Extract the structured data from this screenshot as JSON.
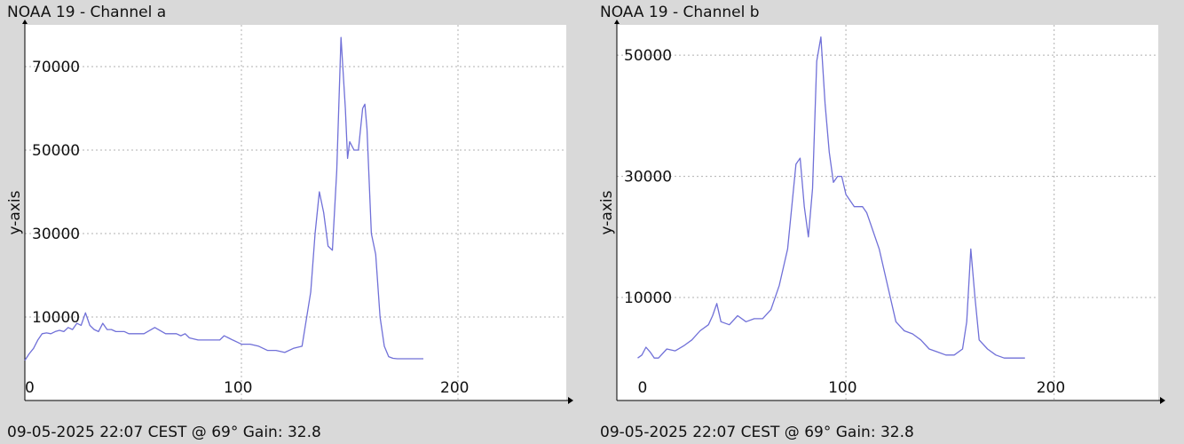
{
  "panels": [
    {
      "title": "NOAA 19 - Channel a",
      "footer": "09-05-2025 22:07 CEST @ 69° Gain: 32.8"
    },
    {
      "title": "NOAA 19 - Channel b",
      "footer": "09-05-2025 22:07 CEST @ 69° Gain: 32.8"
    }
  ],
  "colors": {
    "background": "#d9d9d9",
    "plot_area": "#ffffff",
    "series_line": "#7070d8",
    "grid": "#b0b0b0",
    "axis": "#000000"
  },
  "chart_data": [
    {
      "type": "line",
      "title": "NOAA 19 - Channel a",
      "xlabel": "",
      "ylabel": "y-axis",
      "xlim": [
        0,
        250
      ],
      "ylim": [
        -10000,
        80000
      ],
      "x_ticks": [
        0,
        100,
        200
      ],
      "y_ticks": [
        10000,
        30000,
        50000,
        70000
      ],
      "x_tick_labels": [
        "0",
        "100",
        "200"
      ],
      "y_tick_labels": [
        "10000",
        "30000",
        "50000",
        "70000"
      ],
      "grid": true,
      "series": [
        {
          "x": [
            0,
            2,
            4,
            6,
            8,
            10,
            12,
            14,
            16,
            18,
            20,
            22,
            24,
            26,
            28,
            30,
            32,
            34,
            36,
            38,
            40,
            42,
            44,
            46,
            48,
            50,
            55,
            60,
            65,
            70,
            72,
            74,
            76,
            80,
            85,
            90,
            92,
            94,
            96,
            98,
            100,
            102,
            104,
            108,
            112,
            116,
            120,
            124,
            128,
            132,
            134,
            136,
            138,
            140,
            142,
            144,
            146,
            148,
            149,
            150,
            152,
            154,
            156,
            157,
            158,
            160,
            162,
            164,
            166,
            168,
            169,
            170,
            172,
            174,
            176,
            178,
            180,
            184
          ],
          "y": [
            -400,
            1200,
            2500,
            4500,
            6000,
            6200,
            6000,
            6500,
            6800,
            6500,
            7500,
            7000,
            8500,
            8000,
            11000,
            8000,
            7000,
            6500,
            8500,
            7000,
            7000,
            6500,
            6500,
            6500,
            6000,
            6000,
            6000,
            7500,
            6000,
            6000,
            5500,
            6000,
            5000,
            4500,
            4500,
            4500,
            5500,
            5000,
            4500,
            4000,
            3500,
            3500,
            3500,
            3000,
            2000,
            2000,
            1500,
            2500,
            3000,
            16000,
            30000,
            40000,
            35000,
            27000,
            26000,
            45000,
            77000,
            60000,
            48000,
            52000,
            50000,
            50000,
            60000,
            61000,
            55000,
            30000,
            25000,
            10000,
            3000,
            500,
            300,
            100,
            0,
            0,
            0,
            0,
            0,
            0
          ]
        }
      ]
    },
    {
      "type": "line",
      "title": "NOAA 19 - Channel b",
      "xlabel": "",
      "ylabel": "y-axis",
      "xlim": [
        -10,
        250
      ],
      "ylim": [
        -7000,
        55000
      ],
      "x_ticks": [
        0,
        100,
        200
      ],
      "y_ticks": [
        10000,
        30000,
        50000
      ],
      "x_tick_labels": [
        "0",
        "100",
        "200"
      ],
      "y_tick_labels": [
        "10000",
        "30000",
        "50000"
      ],
      "grid": true,
      "series": [
        {
          "x": [
            0,
            2,
            4,
            6,
            8,
            10,
            14,
            18,
            22,
            26,
            30,
            34,
            36,
            38,
            40,
            44,
            48,
            52,
            56,
            60,
            64,
            68,
            72,
            74,
            76,
            78,
            80,
            82,
            84,
            86,
            88,
            90,
            92,
            94,
            96,
            98,
            100,
            104,
            108,
            110,
            112,
            116,
            120,
            124,
            128,
            132,
            136,
            140,
            144,
            148,
            152,
            156,
            158,
            160,
            162,
            164,
            168,
            172,
            176,
            180,
            184,
            186
          ],
          "y": [
            0,
            500,
            1800,
            1000,
            0,
            0,
            1500,
            1200,
            2000,
            3000,
            4500,
            5500,
            7000,
            9000,
            6000,
            5500,
            7000,
            6000,
            6500,
            6500,
            8000,
            12000,
            18000,
            25000,
            32000,
            33000,
            25000,
            20000,
            28000,
            49000,
            53000,
            42000,
            34000,
            29000,
            30000,
            30000,
            27000,
            25000,
            25000,
            24000,
            22000,
            18000,
            12000,
            6000,
            4500,
            4000,
            3000,
            1500,
            1000,
            500,
            500,
            1500,
            6000,
            18000,
            10000,
            3000,
            1500,
            500,
            0,
            0,
            0,
            0
          ]
        }
      ]
    }
  ]
}
